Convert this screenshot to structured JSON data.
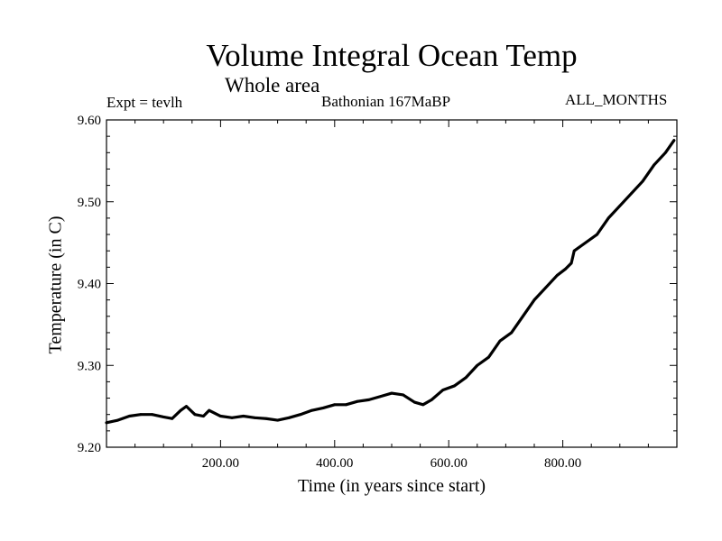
{
  "chart_data": {
    "type": "line",
    "title": "Volume Integral Ocean Temp",
    "subtitle": "Whole area",
    "annotations": {
      "expt": "Expt = tevlh",
      "period": "Bathonian 167MaBP",
      "months": "ALL_MONTHS"
    },
    "xlabel": "Time (in years since start)",
    "ylabel": "Temperature (in C)",
    "xlim": [
      0,
      1000
    ],
    "ylim": [
      9.2,
      9.6
    ],
    "xticks": [
      200,
      400,
      600,
      800
    ],
    "xtick_labels": [
      "200.00",
      "400.00",
      "600.00",
      "800.00"
    ],
    "yticks": [
      9.2,
      9.3,
      9.4,
      9.5,
      9.6
    ],
    "ytick_labels": [
      "9.20",
      "9.30",
      "9.40",
      "9.50",
      "9.60"
    ],
    "series": [
      {
        "name": "Volume Integral Ocean Temp",
        "color": "#000000",
        "x": [
          0,
          20,
          40,
          60,
          80,
          100,
          115,
          130,
          140,
          155,
          170,
          180,
          200,
          220,
          240,
          260,
          280,
          300,
          320,
          340,
          360,
          380,
          400,
          420,
          440,
          460,
          480,
          500,
          520,
          540,
          555,
          570,
          590,
          610,
          630,
          650,
          670,
          690,
          710,
          730,
          750,
          770,
          790,
          805,
          815,
          820,
          840,
          860,
          880,
          900,
          920,
          940,
          960,
          980,
          995
        ],
        "y": [
          9.23,
          9.233,
          9.238,
          9.24,
          9.24,
          9.237,
          9.235,
          9.245,
          9.25,
          9.24,
          9.238,
          9.245,
          9.238,
          9.236,
          9.238,
          9.236,
          9.235,
          9.233,
          9.236,
          9.24,
          9.245,
          9.248,
          9.252,
          9.252,
          9.256,
          9.258,
          9.262,
          9.266,
          9.264,
          9.255,
          9.252,
          9.258,
          9.27,
          9.275,
          9.285,
          9.3,
          9.31,
          9.33,
          9.34,
          9.36,
          9.38,
          9.395,
          9.41,
          9.418,
          9.425,
          9.44,
          9.45,
          9.46,
          9.48,
          9.495,
          9.51,
          9.525,
          9.545,
          9.56,
          9.575
        ]
      }
    ]
  }
}
